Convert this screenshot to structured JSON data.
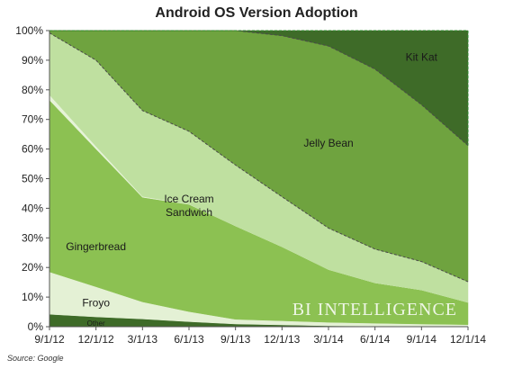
{
  "chart_data": {
    "type": "area",
    "stacked": true,
    "title": "Android OS Version Adoption",
    "x": [
      "9/1/12",
      "12/1/12",
      "3/1/13",
      "6/1/13",
      "9/1/13",
      "12/1/13",
      "3/1/14",
      "6/1/14",
      "9/1/14",
      "12/1/14"
    ],
    "x_tick_labels": [
      "9/1/12",
      "12/1/12",
      "3/1/13",
      "6/1/13",
      "9/1/13",
      "12/1/13",
      "3/1/14",
      "6/1/14",
      "9/1/14",
      "12/1/14"
    ],
    "ylim": [
      0,
      100
    ],
    "y_ticks": [
      0,
      10,
      20,
      30,
      40,
      50,
      60,
      70,
      80,
      90,
      100
    ],
    "y_tick_format": "percent",
    "grid": false,
    "series": [
      {
        "name": "Other",
        "color": "#3e6b28",
        "values": [
          4.2,
          3.3,
          2.6,
          1.7,
          0.9,
          0.6,
          0.3,
          0.2,
          0.1,
          0.1
        ]
      },
      {
        "name": "Froyo",
        "color": "#e4f1d5",
        "values": [
          14.3,
          10.2,
          5.8,
          3.4,
          1.6,
          1.4,
          1.2,
          1.0,
          0.8,
          0.6
        ]
      },
      {
        "name": "Gingerbread",
        "color": "#8cc152",
        "values": [
          58.0,
          46.5,
          35.3,
          36.2,
          31.5,
          25.0,
          17.8,
          13.6,
          11.5,
          7.5
        ]
      },
      {
        "name": "",
        "color": "#e6f3d8",
        "values": [
          1.8,
          0.9,
          0.3,
          0.1,
          0.0,
          0.0,
          0.0,
          0.0,
          0.0,
          0.0
        ]
      },
      {
        "name": "Ice Cream Sandwich",
        "color": "#bfe0a0",
        "values": [
          20.9,
          29.1,
          29.0,
          24.6,
          20.6,
          16.9,
          14.0,
          11.4,
          9.6,
          7.0
        ]
      },
      {
        "name": "Jelly Bean",
        "color": "#6fa33f",
        "values": [
          0.8,
          10.0,
          27.0,
          34.0,
          45.4,
          54.4,
          61.5,
          60.8,
          53.0,
          46.0
        ]
      },
      {
        "name": "Kit Kat",
        "color": "#3e6b28",
        "values": [
          0.0,
          0.0,
          0.0,
          0.0,
          0.0,
          1.7,
          5.2,
          13.0,
          25.0,
          38.8
        ]
      }
    ],
    "annotations": [
      {
        "text": "Kit Kat",
        "x": "9/1/14",
        "y": 91
      },
      {
        "text": "Jelly Bean",
        "x": "3/1/14",
        "y": 62
      },
      {
        "text": "Ice Cream Sandwich",
        "x": "6/1/13",
        "y": 42
      },
      {
        "text": "Gingerbread",
        "x": "12/1/12",
        "y": 27
      },
      {
        "text": "Froyo",
        "x": "12/1/12",
        "y": 8
      },
      {
        "text": "Other",
        "x": "12/1/12",
        "y": 1.5
      }
    ],
    "watermark": "BI INTELLIGENCE",
    "source": "Source: Google"
  }
}
